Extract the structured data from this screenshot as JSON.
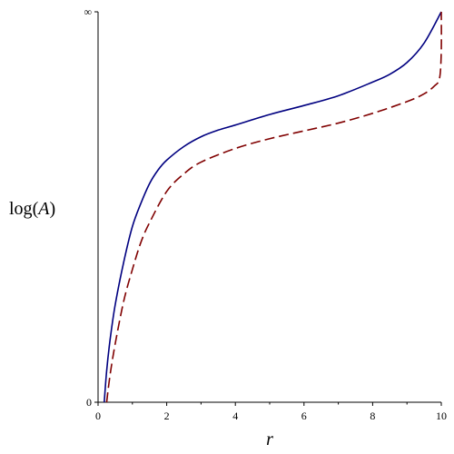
{
  "chart_data": {
    "type": "line",
    "xlabel": "r",
    "ylabel_parts": {
      "fn": "log",
      "open": "(",
      "var": "A",
      "close": ")"
    },
    "xlim": [
      0,
      10
    ],
    "x_ticks": [
      "0",
      "2",
      "4",
      "6",
      "8",
      "10"
    ],
    "y_ticks": [
      "0",
      "∞"
    ],
    "grid": false,
    "legend": "none",
    "series": [
      {
        "style": "solid",
        "color": "#000080",
        "points": [
          [
            0.18,
            0
          ],
          [
            0.25,
            0.08
          ],
          [
            0.35,
            0.16
          ],
          [
            0.5,
            0.25
          ],
          [
            0.75,
            0.36
          ],
          [
            1.0,
            0.45
          ],
          [
            1.25,
            0.51
          ],
          [
            1.5,
            0.56
          ],
          [
            1.75,
            0.595
          ],
          [
            2.0,
            0.62
          ],
          [
            2.5,
            0.655
          ],
          [
            3.0,
            0.68
          ],
          [
            3.5,
            0.697
          ],
          [
            4.0,
            0.71
          ],
          [
            5.0,
            0.737
          ],
          [
            6.0,
            0.76
          ],
          [
            7.0,
            0.785
          ],
          [
            8.0,
            0.82
          ],
          [
            8.5,
            0.84
          ],
          [
            9.0,
            0.87
          ],
          [
            9.5,
            0.92
          ],
          [
            10.0,
            1.0
          ]
        ]
      },
      {
        "style": "dashed",
        "color": "#800000",
        "points": [
          [
            0.25,
            0
          ],
          [
            0.35,
            0.07
          ],
          [
            0.5,
            0.15
          ],
          [
            0.75,
            0.26
          ],
          [
            1.0,
            0.34
          ],
          [
            1.25,
            0.41
          ],
          [
            1.5,
            0.46
          ],
          [
            2.0,
            0.54
          ],
          [
            2.5,
            0.585
          ],
          [
            3.0,
            0.615
          ],
          [
            4.0,
            0.65
          ],
          [
            5.0,
            0.675
          ],
          [
            6.0,
            0.695
          ],
          [
            7.0,
            0.715
          ],
          [
            8.0,
            0.74
          ],
          [
            9.0,
            0.77
          ],
          [
            9.5,
            0.79
          ],
          [
            9.8,
            0.81
          ],
          [
            9.95,
            0.83
          ],
          [
            10.0,
            0.9
          ],
          [
            10.0,
            1.0
          ]
        ]
      }
    ]
  }
}
